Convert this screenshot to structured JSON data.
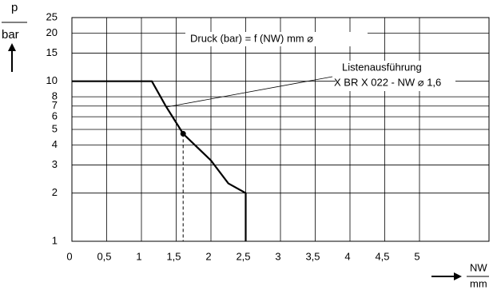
{
  "chart_data": {
    "type": "line",
    "annotations": [
      "Druck (bar) = f (NW) mm ⌀",
      "Listenausführung",
      "X BR X 022 - NW ⌀ 1,6"
    ],
    "y_label": [
      "p",
      "bar"
    ],
    "x_label": [
      "NW",
      "mm"
    ],
    "x": [
      0,
      1.15,
      1.35,
      1.6,
      2,
      2.25,
      2.5,
      2.5
    ],
    "series": [
      {
        "color": "#000000",
        "values": [
          10,
          10,
          7,
          4.7,
          3.2,
          2.3,
          2,
          1
        ]
      }
    ],
    "marker": {
      "x": 1.6,
      "y": 4.7
    },
    "xlim": [
      0,
      6
    ],
    "xticks": [
      0,
      {
        "value": 0.5,
        "label": "0,5"
      },
      1,
      {
        "value": 1.5,
        "label": "1,5"
      },
      2,
      {
        "value": 2.5,
        "label": "2,5"
      },
      3,
      {
        "value": 3.5,
        "label": "3,5"
      },
      4,
      {
        "value": 4.5,
        "label": "4,5"
      },
      5
    ],
    "ylim": [
      1,
      25
    ],
    "yticks": [
      1,
      2,
      3,
      4,
      5,
      6,
      7,
      8,
      10,
      15,
      20,
      25
    ],
    "log_y": true,
    "grid": true
  }
}
